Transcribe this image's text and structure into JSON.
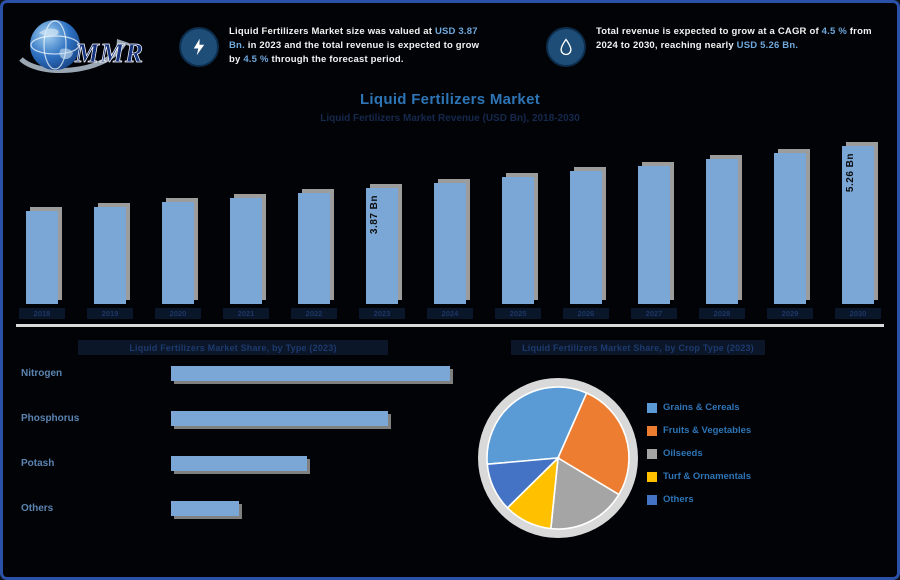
{
  "logo": {
    "text": "MMR"
  },
  "header": {
    "stat1": {
      "icon": "lightning-icon",
      "segments": [
        {
          "text": "Liquid Fertilizers Market size was valued at ",
          "style": "w"
        },
        {
          "text": "USD 3.87 Bn.",
          "style": "hl"
        },
        {
          "text": " in 2023 and the total revenue is expected to grow by ",
          "style": "w"
        },
        {
          "text": "4.5 %",
          "style": "hl"
        },
        {
          "text": " through the forecast period.",
          "style": "w"
        }
      ]
    },
    "stat2": {
      "icon": "water-drop-icon",
      "segments": [
        {
          "text": "Total revenue is expected ",
          "style": "w"
        },
        {
          "text": "to grow at a CAGR of ",
          "style": "w"
        },
        {
          "text": "4.5 %",
          "style": "hl"
        },
        {
          "text": " from 2024 to 2030, reaching nearly ",
          "style": "w"
        },
        {
          "text": "USD 5.26 Bn.",
          "style": "hl"
        }
      ]
    }
  },
  "title": "Liquid Fertilizers Market",
  "subtitle": "Liquid Fertilizers Market Revenue (USD Bn), 2018-2030",
  "chart_data": [
    {
      "type": "bar",
      "title": "Liquid Fertilizers Market Revenue (USD Bn), 2018-2030",
      "categories": [
        "2018",
        "2019",
        "2020",
        "2021",
        "2022",
        "2023",
        "2024",
        "2025",
        "2026",
        "2027",
        "2028",
        "2029",
        "2030"
      ],
      "values": [
        3.1,
        3.24,
        3.39,
        3.54,
        3.7,
        3.87,
        4.04,
        4.23,
        4.42,
        4.61,
        4.82,
        5.04,
        5.26
      ],
      "annotations": [
        {
          "index": 5,
          "text": "3.87 Bn"
        },
        {
          "index": 12,
          "text": "5.26 Bn"
        }
      ],
      "ylim": [
        0,
        5.5
      ],
      "grid": "off",
      "legend": "off",
      "bar_color": "#7aa7d6"
    },
    {
      "type": "bar",
      "orientation": "horizontal",
      "title": "Liquid Fertilizers Market Share, by Type (2023)",
      "categories": [
        "Nitrogen",
        "Phosphorus",
        "Potash",
        "Others"
      ],
      "values": [
        45,
        35,
        22,
        11
      ],
      "bar_color": "#7aa7d6"
    },
    {
      "type": "pie",
      "title": "Liquid Fertilizers Market Share, by Crop Type (2023)",
      "labels": [
        "Grains & Cereals",
        "Fruits & Vegetables",
        "Oilseeds",
        "Turf & Ornamentals",
        "Others"
      ],
      "values": [
        33,
        27,
        18,
        11,
        11
      ],
      "colors": [
        "#5b9bd5",
        "#ed7d31",
        "#a5a5a5",
        "#ffc000",
        "#4472c4"
      ],
      "legend_position": "right"
    }
  ],
  "colors": {
    "accent_blue": "#2e75b6",
    "bar_blue": "#7aa7d6",
    "highlight_blue": "#6fa8dc",
    "divider_grey": "#d9d9d9",
    "icon_circle_blue": "#1e4d78",
    "border_blue": "#2b50a8"
  }
}
